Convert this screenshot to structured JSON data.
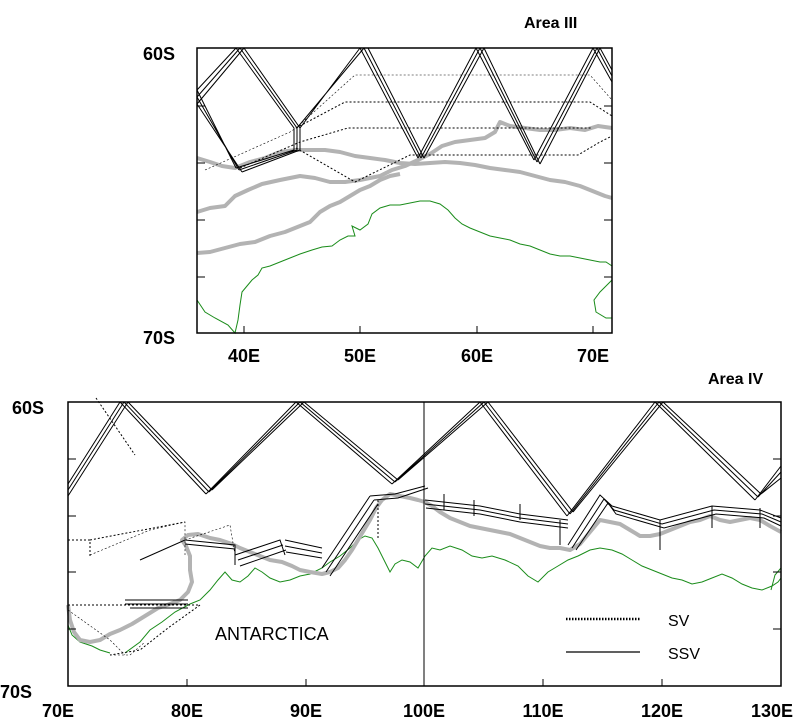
{
  "map_top": {
    "area_label": "Area III",
    "lat_top_label": "60S",
    "lat_bottom_label": "70S",
    "lon_labels": [
      "40E",
      "50E",
      "60E",
      "70E"
    ]
  },
  "map_bottom": {
    "area_label": "Area IV",
    "lat_top_label": "60S",
    "lat_bottom_label": "70S",
    "lon_labels": [
      "70E",
      "80E",
      "90E",
      "100E",
      "110E",
      "120E",
      "130E"
    ],
    "land_label": "ANTARCTICA"
  },
  "legend": {
    "items": [
      {
        "label": "SV",
        "style": "dotted"
      },
      {
        "label": "SSV",
        "style": "solid"
      }
    ]
  },
  "colors": {
    "coastline": "#1a8c1a",
    "ice_edge": "#b3b3b3",
    "track": "#000000"
  }
}
